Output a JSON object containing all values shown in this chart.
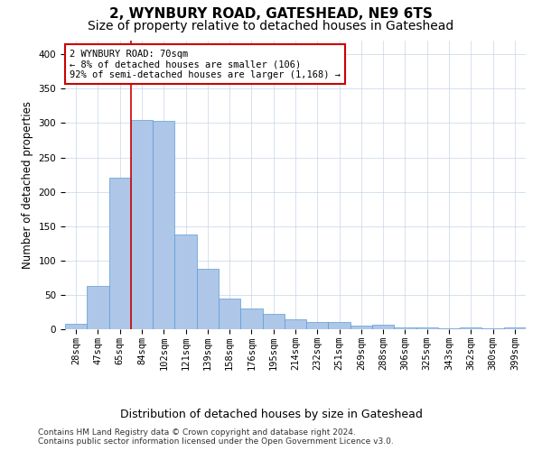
{
  "title": "2, WYNBURY ROAD, GATESHEAD, NE9 6TS",
  "subtitle": "Size of property relative to detached houses in Gateshead",
  "xlabel": "Distribution of detached houses by size in Gateshead",
  "ylabel": "Number of detached properties",
  "categories": [
    "28sqm",
    "47sqm",
    "65sqm",
    "84sqm",
    "102sqm",
    "121sqm",
    "139sqm",
    "158sqm",
    "176sqm",
    "195sqm",
    "214sqm",
    "232sqm",
    "251sqm",
    "269sqm",
    "288sqm",
    "306sqm",
    "325sqm",
    "343sqm",
    "362sqm",
    "380sqm",
    "399sqm"
  ],
  "values": [
    8,
    63,
    220,
    305,
    303,
    138,
    88,
    45,
    30,
    22,
    14,
    11,
    10,
    5,
    6,
    3,
    2,
    1,
    2,
    1,
    3
  ],
  "bar_color": "#aec6e8",
  "bar_edge_color": "#5b9bd5",
  "vline_color": "#cc0000",
  "vline_x_index": 2.5,
  "annotation_title": "2 WYNBURY ROAD: 70sqm",
  "annotation_line1": "← 8% of detached houses are smaller (106)",
  "annotation_line2": "92% of semi-detached houses are larger (1,168) →",
  "annotation_box_color": "#cc0000",
  "ylim": [
    0,
    420
  ],
  "yticks": [
    0,
    50,
    100,
    150,
    200,
    250,
    300,
    350,
    400
  ],
  "footer_line1": "Contains HM Land Registry data © Crown copyright and database right 2024.",
  "footer_line2": "Contains public sector information licensed under the Open Government Licence v3.0.",
  "bg_color": "#ffffff",
  "grid_color": "#c8d4e8",
  "title_fontsize": 11,
  "subtitle_fontsize": 10,
  "xlabel_fontsize": 9,
  "ylabel_fontsize": 8.5,
  "tick_fontsize": 7.5,
  "footer_fontsize": 6.5,
  "annotation_fontsize": 7.5
}
